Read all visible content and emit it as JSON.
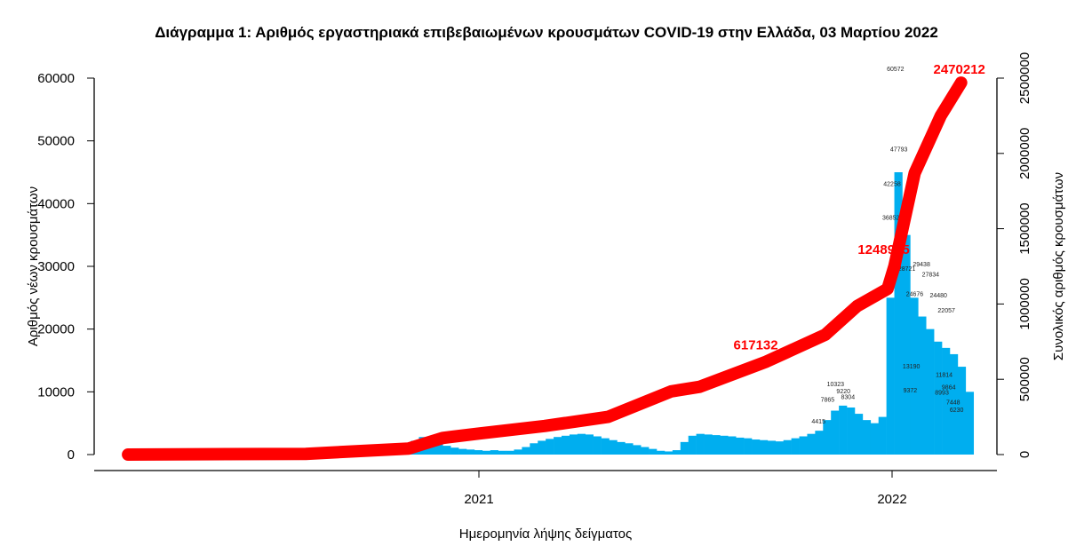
{
  "chart_data": {
    "type": "bar+line",
    "title": "Διάγραμμα 1: Αριθμός εργαστηριακά επιβεβαιωμένων κρουσμάτων COVID-19 στην Ελλάδα, 03 Μαρτίου 2022",
    "xlabel": "Ημερομηνία λήψης δείγματος",
    "ylabel_left": "Αριθμός νέων κρουσμάτων",
    "ylabel_right": "Συνολικός αριθμός κρουσμάτων",
    "x_ticks": [
      {
        "date": "2021-01-01",
        "label": "2021"
      },
      {
        "date": "2022-01-01",
        "label": "2022"
      }
    ],
    "ylim_left": [
      0,
      60000
    ],
    "y_ticks_left": [
      "0",
      "10000",
      "20000",
      "30000",
      "40000",
      "50000",
      "60000"
    ],
    "ylim_right": [
      0,
      2500000
    ],
    "y_ticks_right": [
      "0",
      "500000",
      "1000000",
      "1500000",
      "2000000",
      "2500000"
    ],
    "grid": false,
    "colors": {
      "bars": "#00aeef",
      "cumulative": "#ff0000",
      "labels": "#222222"
    },
    "new_cases_weekly": {
      "start": "2020-02-24",
      "interval_days": 7,
      "values": [
        5,
        30,
        60,
        80,
        90,
        100,
        50,
        30,
        20,
        15,
        10,
        10,
        15,
        10,
        10,
        15,
        20,
        25,
        30,
        40,
        60,
        80,
        150,
        200,
        250,
        200,
        250,
        250,
        280,
        300,
        350,
        400,
        450,
        600,
        900,
        1400,
        2200,
        2800,
        2500,
        2000,
        1400,
        1100,
        900,
        800,
        700,
        600,
        700,
        600,
        600,
        800,
        1200,
        1800,
        2200,
        2500,
        2800,
        3000,
        3200,
        3300,
        3200,
        2900,
        2600,
        2300,
        2000,
        1800,
        1500,
        1200,
        900,
        600,
        500,
        700,
        2000,
        3000,
        3300,
        3200,
        3100,
        3000,
        2900,
        2700,
        2600,
        2400,
        2300,
        2200,
        2100,
        2300,
        2600,
        2900,
        3300,
        3800,
        5500,
        7000,
        7800,
        7500,
        6500,
        5500,
        5000,
        6000,
        25000,
        45000,
        35000,
        25000,
        22000,
        20000,
        18000,
        17000,
        16000,
        14000,
        10000
      ]
    },
    "bar_labels": [
      {
        "date": "2022-01-04",
        "value": 60572
      },
      {
        "date": "2022-01-07",
        "value": 47793
      },
      {
        "date": "2022-01-01",
        "value": 42258
      },
      {
        "date": "2021-12-31",
        "value": 36852
      },
      {
        "date": "2022-01-27",
        "value": 29438
      },
      {
        "date": "2022-01-14",
        "value": 28721
      },
      {
        "date": "2022-02-04",
        "value": 27834
      },
      {
        "date": "2022-02-11",
        "value": 24480
      },
      {
        "date": "2022-01-21",
        "value": 24676
      },
      {
        "date": "2022-02-18",
        "value": 22057
      },
      {
        "date": "2021-11-12",
        "value": 10323
      },
      {
        "date": "2021-11-19",
        "value": 9220
      },
      {
        "date": "2021-11-23",
        "value": 8304
      },
      {
        "date": "2021-11-05",
        "value": 7865
      },
      {
        "date": "2021-10-28",
        "value": 4415
      },
      {
        "date": "2022-01-18",
        "value": 13190
      },
      {
        "date": "2022-01-17",
        "value": 9372
      },
      {
        "date": "2022-02-16",
        "value": 11814
      },
      {
        "date": "2022-02-20",
        "value": 9864
      },
      {
        "date": "2022-02-14",
        "value": 8993
      },
      {
        "date": "2022-02-24",
        "value": 7448
      },
      {
        "date": "2022-02-27",
        "value": 6230
      }
    ],
    "cumulative": {
      "points": [
        [
          "2020-02-26",
          0
        ],
        [
          "2020-08-01",
          5000
        ],
        [
          "2020-10-31",
          40000
        ],
        [
          "2020-11-30",
          110000
        ],
        [
          "2021-01-01",
          140000
        ],
        [
          "2021-02-28",
          190000
        ],
        [
          "2021-04-25",
          250000
        ],
        [
          "2021-06-20",
          420000
        ],
        [
          "2021-07-15",
          450000
        ],
        [
          "2021-09-12",
          617132
        ],
        [
          "2021-11-03",
          796000
        ],
        [
          "2021-12-01",
          985000
        ],
        [
          "2021-12-28",
          1100000
        ],
        [
          "2022-01-03",
          1248975
        ],
        [
          "2022-01-21",
          1870000
        ],
        [
          "2022-02-13",
          2250000
        ],
        [
          "2022-03-03",
          2470212
        ]
      ],
      "labels": [
        {
          "date": "2021-09-12",
          "value": "617132"
        },
        {
          "date": "2022-01-03",
          "value": "1248975"
        },
        {
          "date": "2022-03-03",
          "value": "2470212"
        }
      ]
    }
  }
}
